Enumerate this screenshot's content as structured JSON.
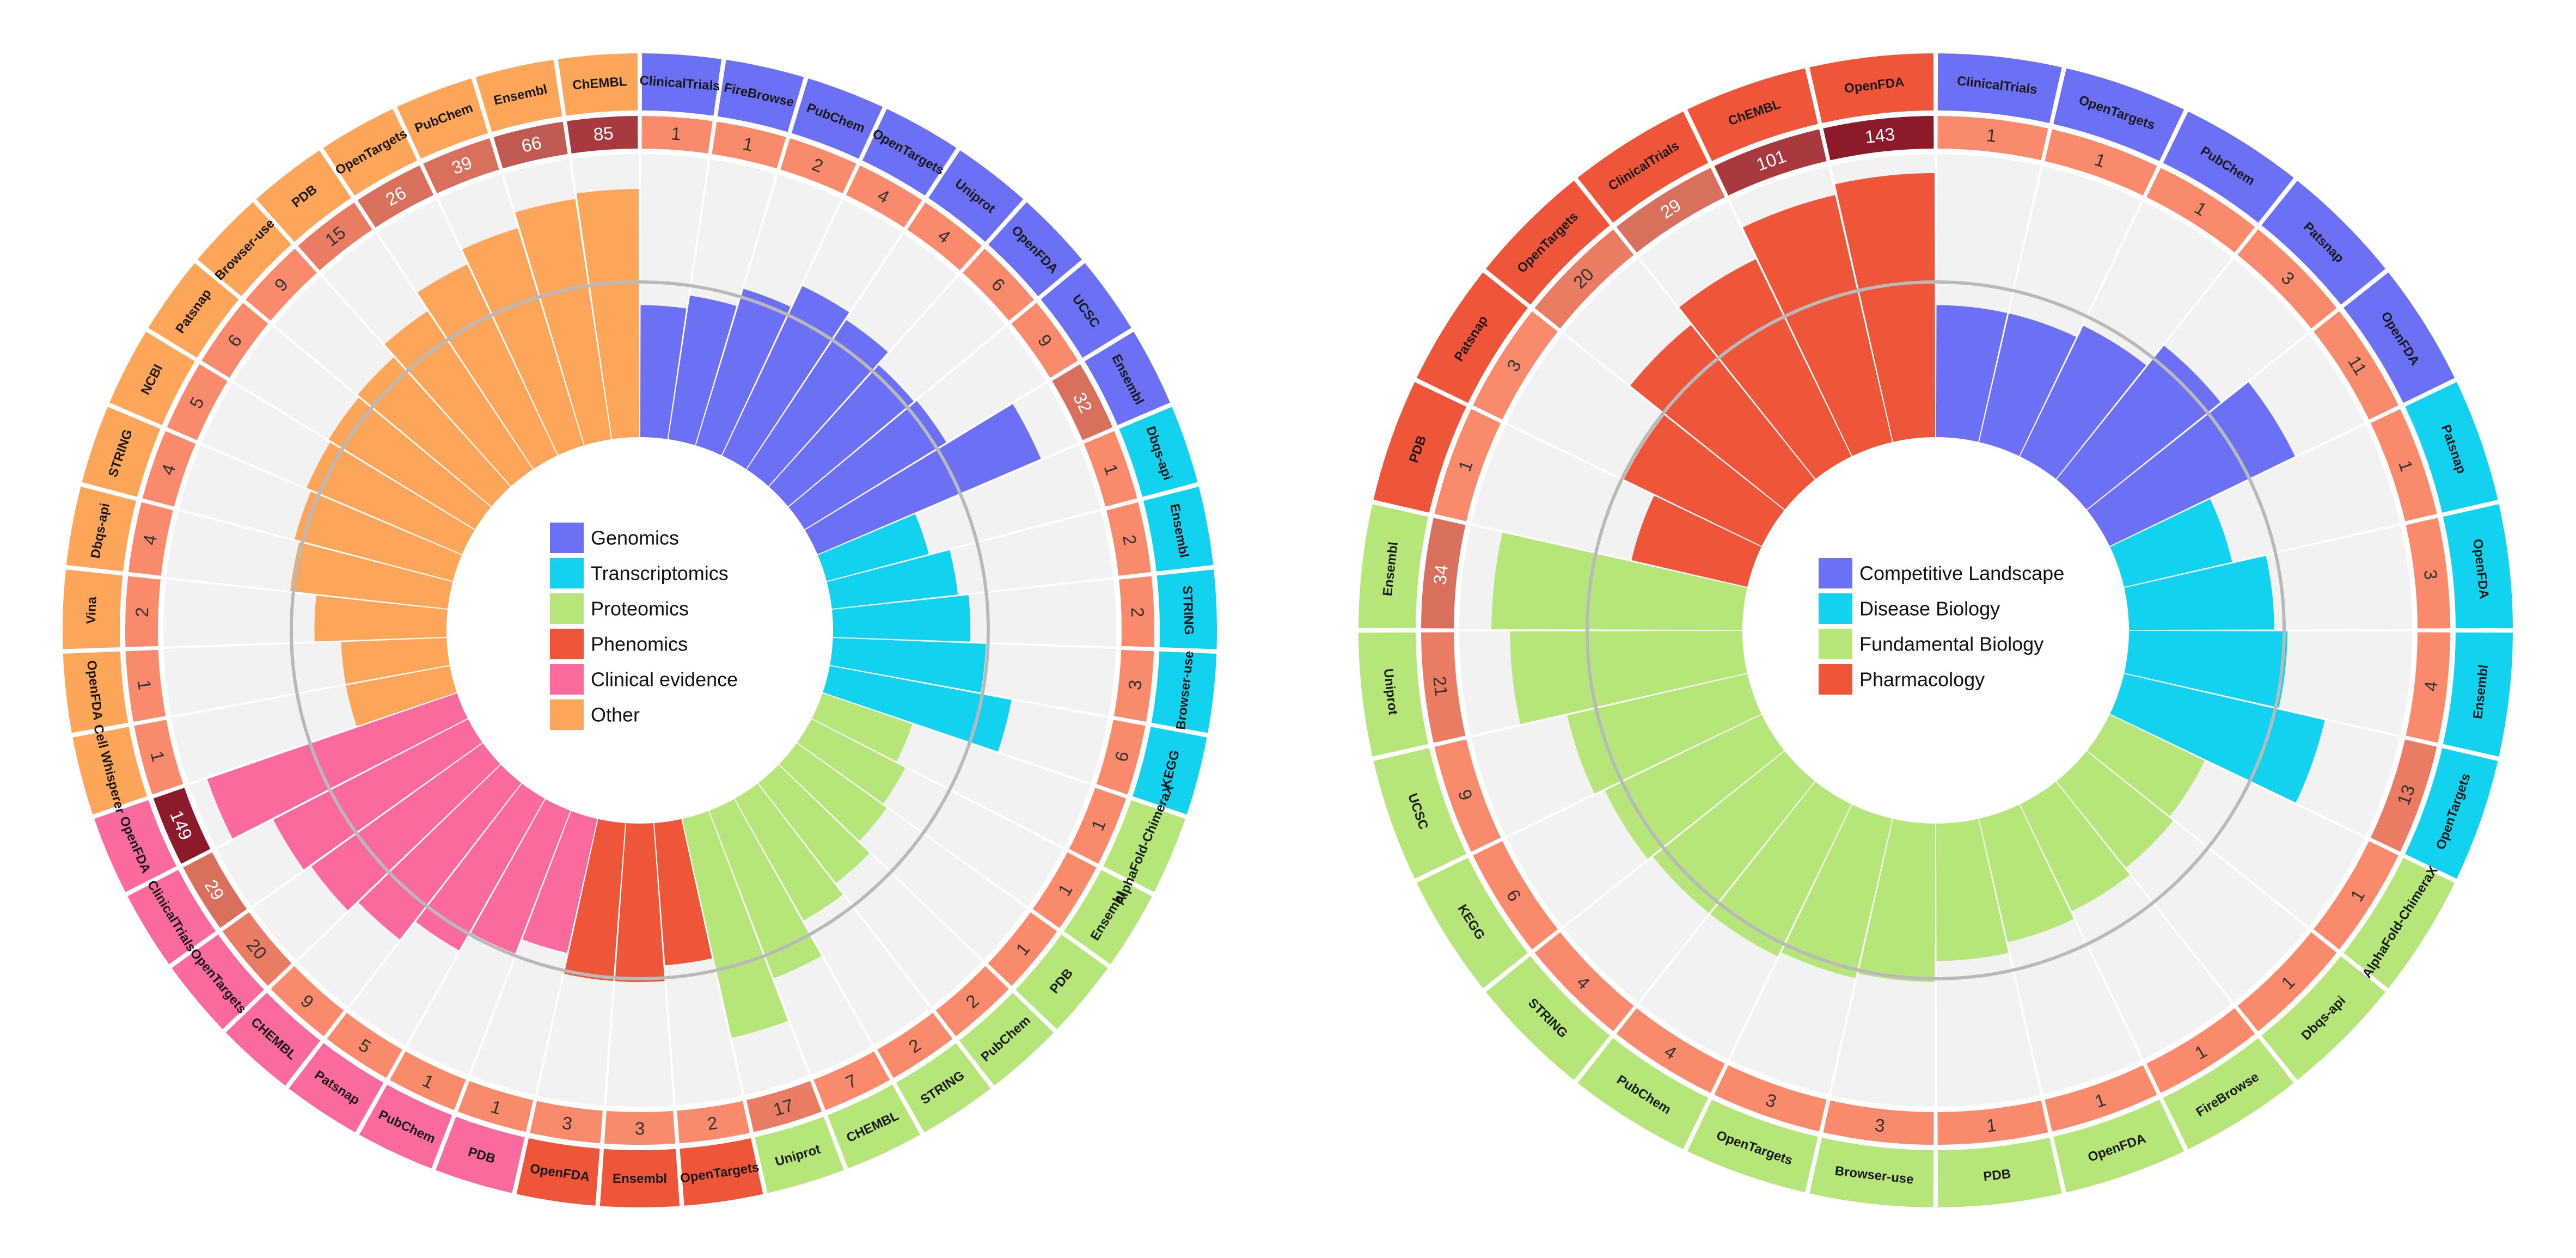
{
  "chart_data": [
    {
      "type": "bar",
      "subtype": "circular-bar",
      "legend": [
        "Genomics",
        "Transcriptomics",
        "Proteomics",
        "Phenomics",
        "Clinical evidence",
        "Other"
      ],
      "colors": {
        "Genomics": "#6b70f5",
        "Transcriptomics": "#12d2ef",
        "Proteomics": "#b6e57a",
        "Phenomics": "#ef5538",
        "Clinical evidence": "#fb6a9c",
        "Other": "#fda65a"
      },
      "bars": [
        {
          "group": "Genomics",
          "label": "ClinicalTrials",
          "count": 1,
          "value": 0.5
        },
        {
          "group": "Genomics",
          "label": "FireBrowse",
          "count": 1,
          "value": 0.55
        },
        {
          "group": "Genomics",
          "label": "PubChem",
          "count": 2,
          "value": 0.62
        },
        {
          "group": "Genomics",
          "label": "OpenTargets",
          "count": 4,
          "value": 0.71
        },
        {
          "group": "Genomics",
          "label": "Uniprot",
          "count": 4,
          "value": 0.68
        },
        {
          "group": "Genomics",
          "label": "OpenFDA",
          "count": 6,
          "value": 0.62
        },
        {
          "group": "Genomics",
          "label": "UCSC",
          "count": 9,
          "value": 0.63
        },
        {
          "group": "Genomics",
          "label": "Ensembl",
          "count": 32,
          "value": 0.92
        },
        {
          "group": "Transcriptomics",
          "label": "Dbqs-api",
          "count": 1,
          "value": 0.4
        },
        {
          "group": "Transcriptomics",
          "label": "Ensembl",
          "count": 2,
          "value": 0.48
        },
        {
          "group": "Transcriptomics",
          "label": "STRING",
          "count": 2,
          "value": 0.52
        },
        {
          "group": "Transcriptomics",
          "label": "Browser-use",
          "count": 3,
          "value": 0.58
        },
        {
          "group": "Transcriptomics",
          "label": "KEGG",
          "count": 6,
          "value": 0.7
        },
        {
          "group": "Proteomics",
          "label": "AlphaFold-ChimeraX",
          "count": 1,
          "value": 0.36
        },
        {
          "group": "Proteomics",
          "label": "Ensembl",
          "count": 1,
          "value": 0.4
        },
        {
          "group": "Proteomics",
          "label": "PDB",
          "count": 1,
          "value": 0.42
        },
        {
          "group": "Proteomics",
          "label": "PubChem",
          "count": 2,
          "value": 0.48
        },
        {
          "group": "Proteomics",
          "label": "STRING",
          "count": 2,
          "value": 0.53
        },
        {
          "group": "Proteomics",
          "label": "CHEMBL",
          "count": 7,
          "value": 0.68
        },
        {
          "group": "Proteomics",
          "label": "Uniprot",
          "count": 17,
          "value": 0.85
        },
        {
          "group": "Phenomics",
          "label": "OpenTargets",
          "count": 2,
          "value": 0.54
        },
        {
          "group": "Phenomics",
          "label": "Ensembl",
          "count": 3,
          "value": 0.6
        },
        {
          "group": "Phenomics",
          "label": "OpenFDA",
          "count": 3,
          "value": 0.6
        },
        {
          "group": "Clinical evidence",
          "label": "PDB",
          "count": 1,
          "value": 0.52
        },
        {
          "group": "Clinical evidence",
          "label": "PubChem",
          "count": 1,
          "value": 0.58
        },
        {
          "group": "Clinical evidence",
          "label": "Patsnap",
          "count": 5,
          "value": 0.66
        },
        {
          "group": "Clinical evidence",
          "label": "CHEMBL",
          "count": 9,
          "value": 0.75
        },
        {
          "group": "Clinical evidence",
          "label": "OpenTargets",
          "count": 20,
          "value": 0.8
        },
        {
          "group": "Clinical evidence",
          "label": "ClinicalTrials",
          "count": 29,
          "value": 0.83
        },
        {
          "group": "Clinical evidence",
          "label": "OpenFDA",
          "count": 149,
          "value": 1.0
        },
        {
          "group": "Other",
          "label": "Cell Whisperer",
          "count": 1,
          "value": 0.4
        },
        {
          "group": "Other",
          "label": "OpenFDA",
          "count": 1,
          "value": 0.4
        },
        {
          "group": "Other",
          "label": "Vina",
          "count": 2,
          "value": 0.5
        },
        {
          "group": "Other",
          "label": "Dbqs-api",
          "count": 4,
          "value": 0.6
        },
        {
          "group": "Other",
          "label": "STRING",
          "count": 4,
          "value": 0.62
        },
        {
          "group": "Other",
          "label": "NCBI",
          "count": 5,
          "value": 0.64
        },
        {
          "group": "Other",
          "label": "Patsnap",
          "count": 6,
          "value": 0.65
        },
        {
          "group": "Other",
          "label": "Browser-use",
          "count": 9,
          "value": 0.66
        },
        {
          "group": "Other",
          "label": "PDB",
          "count": 15,
          "value": 0.72
        },
        {
          "group": "Other",
          "label": "OpenTargets",
          "count": 26,
          "value": 0.8
        },
        {
          "group": "Other",
          "label": "PubChem",
          "count": 39,
          "value": 0.86
        },
        {
          "group": "Other",
          "label": "Ensembl",
          "count": 66,
          "value": 0.92
        },
        {
          "group": "Other",
          "label": "ChEMBL",
          "count": 85,
          "value": 0.94
        }
      ]
    },
    {
      "type": "bar",
      "subtype": "circular-bar",
      "legend": [
        "Competitive Landscape",
        "Disease Biology",
        "Fundamental Biology",
        "Pharmacology"
      ],
      "colors": {
        "Competitive Landscape": "#6b70f5",
        "Disease Biology": "#12d2ef",
        "Fundamental Biology": "#b6e57a",
        "Pharmacology": "#ef5538"
      },
      "bars": [
        {
          "group": "Competitive Landscape",
          "label": "ClinicalTrials",
          "count": 1,
          "value": 0.5
        },
        {
          "group": "Competitive Landscape",
          "label": "OpenTargets",
          "count": 1,
          "value": 0.5
        },
        {
          "group": "Competitive Landscape",
          "label": "PubChem",
          "count": 1,
          "value": 0.55
        },
        {
          "group": "Competitive Landscape",
          "label": "Patsnap",
          "count": 3,
          "value": 0.65
        },
        {
          "group": "Competitive Landscape",
          "label": "OpenFDA",
          "count": 11,
          "value": 0.78
        },
        {
          "group": "Disease Biology",
          "label": "Patsnap",
          "count": 1,
          "value": 0.42
        },
        {
          "group": "Disease Biology",
          "label": "OpenFDA",
          "count": 3,
          "value": 0.55
        },
        {
          "group": "Disease Biology",
          "label": "Ensembl",
          "count": 4,
          "value": 0.6
        },
        {
          "group": "Disease Biology",
          "label": "OpenTargets",
          "count": 13,
          "value": 0.78
        },
        {
          "group": "Fundamental Biology",
          "label": "AlphaFold-ChimeraX",
          "count": 1,
          "value": 0.4
        },
        {
          "group": "Fundamental Biology",
          "label": "Dbqs-api",
          "count": 1,
          "value": 0.42
        },
        {
          "group": "Fundamental Biology",
          "label": "FireBrowse",
          "count": 1,
          "value": 0.45
        },
        {
          "group": "Fundamental Biology",
          "label": "OpenFDA",
          "count": 1,
          "value": 0.48
        },
        {
          "group": "Fundamental Biology",
          "label": "PDB",
          "count": 1,
          "value": 0.52
        },
        {
          "group": "Fundamental Biology",
          "label": "Browser-use",
          "count": 3,
          "value": 0.6
        },
        {
          "group": "Fundamental Biology",
          "label": "OpenTargets",
          "count": 3,
          "value": 0.62
        },
        {
          "group": "Fundamental Biology",
          "label": "PubChem",
          "count": 4,
          "value": 0.64
        },
        {
          "group": "Fundamental Biology",
          "label": "STRING",
          "count": 4,
          "value": 0.64
        },
        {
          "group": "Fundamental Biology",
          "label": "KEGG",
          "count": 6,
          "value": 0.66
        },
        {
          "group": "Fundamental Biology",
          "label": "UCSC",
          "count": 9,
          "value": 0.7
        },
        {
          "group": "Fundamental Biology",
          "label": "Uniprot",
          "count": 21,
          "value": 0.88
        },
        {
          "group": "Fundamental Biology",
          "label": "Ensembl",
          "count": 34,
          "value": 0.95
        },
        {
          "group": "Pharmacology",
          "label": "PDB",
          "count": 1,
          "value": 0.45
        },
        {
          "group": "Pharmacology",
          "label": "Patsnap",
          "count": 3,
          "value": 0.58
        },
        {
          "group": "Pharmacology",
          "label": "OpenTargets",
          "count": 20,
          "value": 0.75
        },
        {
          "group": "Pharmacology",
          "label": "ClinicalTrials",
          "count": 29,
          "value": 0.83
        },
        {
          "group": "Pharmacology",
          "label": "ChEMBL",
          "count": 101,
          "value": 0.96
        },
        {
          "group": "Pharmacology",
          "label": "OpenFDA",
          "count": 143,
          "value": 1.0
        }
      ]
    }
  ]
}
